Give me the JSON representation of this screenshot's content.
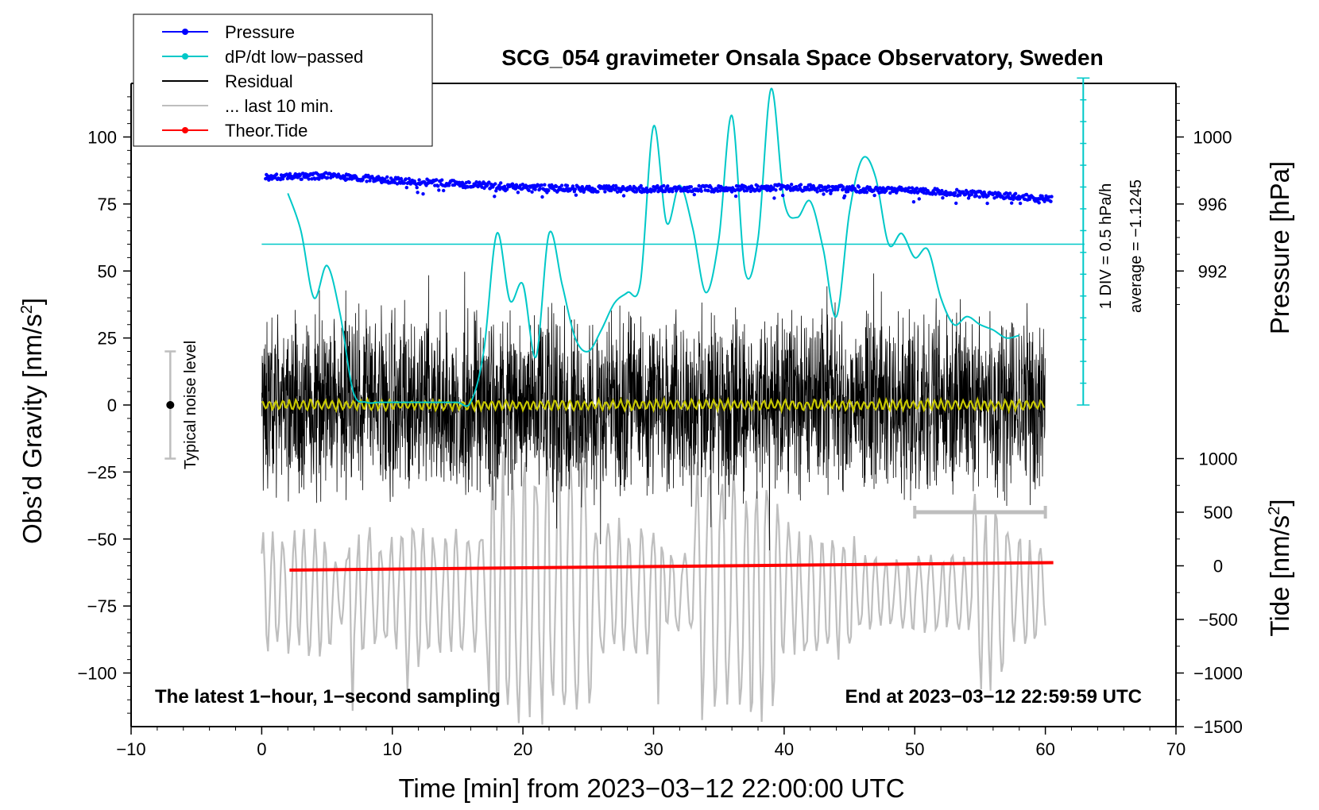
{
  "chart_data": {
    "type": "line",
    "title": "SCG_054 gravimeter Onsala Space Observatory, Sweden",
    "xlabel": "Time [min] from 2023−03−12 22:00:00 UTC",
    "ylabel_left": "Obs’d Gravity [nm/s",
    "ylabel_left_sup": "2",
    "ylabel_left_close": "]",
    "ylabel_right_pressure": "Pressure [hPa]",
    "ylabel_right_tide": "Tide [nm/s",
    "ylabel_right_tide_sup": "2",
    "ylabel_right_tide_close": "]",
    "xlim": [
      -10,
      70
    ],
    "ylim_left": [
      -120,
      120
    ],
    "x_ticks": [
      -10,
      0,
      10,
      20,
      30,
      40,
      50,
      60,
      70
    ],
    "x_tick_labels": [
      "−10",
      "0",
      "10",
      "20",
      "30",
      "40",
      "50",
      "60",
      "70"
    ],
    "y_left_ticks": [
      100,
      75,
      50,
      25,
      0,
      -25,
      -50,
      -75,
      -100
    ],
    "y_left_tick_labels": [
      "100",
      "75",
      "50",
      "25",
      "0",
      "−25",
      "−50",
      "−75",
      "−100"
    ],
    "pressure_ticks": [
      1000,
      996,
      992
    ],
    "pressure_tick_labels": [
      "1000",
      "996",
      "992"
    ],
    "pressure_scale": {
      "value_at_y75": 996,
      "hpa_per_grav_unit": 0.16
    },
    "tide_ticks": [
      1000,
      500,
      0,
      -500,
      -1000,
      -1500
    ],
    "tide_tick_labels": [
      "1000",
      "500",
      "0",
      "−500",
      "−1000",
      "−1500"
    ],
    "tide_scale": {
      "zero_at_grav": -60,
      "tide_per_grav_unit": 25
    },
    "legend": [
      {
        "label": "Pressure",
        "color": "#0000ff",
        "marker": true
      },
      {
        "label": "dP/dt low−passed",
        "color": "#00c8c8",
        "marker": true
      },
      {
        "label": "Residual",
        "color": "#000000",
        "marker": false
      },
      {
        "label": "... last 10 min.",
        "color": "#bebebe",
        "marker": false
      },
      {
        "label": "Theor.Tide",
        "color": "#ff0000",
        "marker": true
      }
    ],
    "legend_position": "top-left",
    "notes": {
      "bottom_left": "The latest 1−hour, 1−second sampling",
      "bottom_right": "End at 2023−03−12 22:59:59 UTC",
      "dpdt_div": "1 DIV = 0.5 hPa/h",
      "dpdt_average": "average = −1.1245",
      "noise": "Typical noise level"
    },
    "noise_bar": {
      "x": -7,
      "center": 0,
      "half_range": 20
    },
    "last10_bar": {
      "x_start": 50,
      "x_end": 60,
      "y": -40
    },
    "dpdt_baseline_grav": 60,
    "series": [
      {
        "name": "Pressure",
        "color": "#0000ff",
        "x": [
          0,
          5,
          10,
          15,
          20,
          25,
          30,
          35,
          40,
          45,
          50,
          55,
          60
        ],
        "y": [
          997.6,
          997.7,
          997.4,
          997.2,
          997.0,
          996.9,
          996.9,
          996.9,
          997.0,
          996.9,
          996.8,
          996.6,
          996.3
        ]
      },
      {
        "name": "dP/dt low-passed",
        "color": "#00c8c8",
        "x": [
          2,
          3,
          4,
          5,
          6,
          7,
          8,
          9,
          10,
          11,
          12,
          13,
          14,
          15,
          16,
          17,
          18,
          19,
          20,
          21,
          22,
          23,
          24,
          25,
          26,
          27,
          28,
          29,
          30,
          31,
          32,
          33,
          34,
          35,
          36,
          37,
          38,
          39,
          40,
          41,
          42,
          43,
          44,
          45,
          46,
          47,
          48,
          49,
          50,
          51,
          52,
          53,
          54,
          55,
          56,
          57,
          58
        ],
        "y": [
          79,
          65,
          40,
          52,
          34,
          5,
          1,
          1,
          1,
          1,
          1,
          1,
          1,
          1,
          1,
          20,
          64,
          39,
          45,
          18,
          64,
          45,
          25,
          20,
          28,
          38,
          42,
          46,
          104,
          68,
          82,
          66,
          42,
          62,
          108,
          50,
          62,
          118,
          76,
          70,
          76,
          58,
          33,
          72,
          92,
          85,
          60,
          64,
          55,
          58,
          40,
          30,
          33,
          30,
          28,
          25,
          26
        ]
      },
      {
        "name": "Residual",
        "color": "#000000",
        "envelope": 40,
        "x_range": [
          0,
          60
        ]
      },
      {
        "name": "Residual low-passed",
        "color": "#c8c800",
        "envelope": 2,
        "x_range": [
          0,
          60
        ]
      },
      {
        "name": "... last 10 min.",
        "color": "#bebebe",
        "x_range": [
          0,
          60
        ],
        "center": -70,
        "amplitude": 25
      },
      {
        "name": "Theor.Tide",
        "color": "#ff0000",
        "x": [
          0,
          60
        ],
        "y": [
          -40,
          30
        ]
      }
    ]
  }
}
